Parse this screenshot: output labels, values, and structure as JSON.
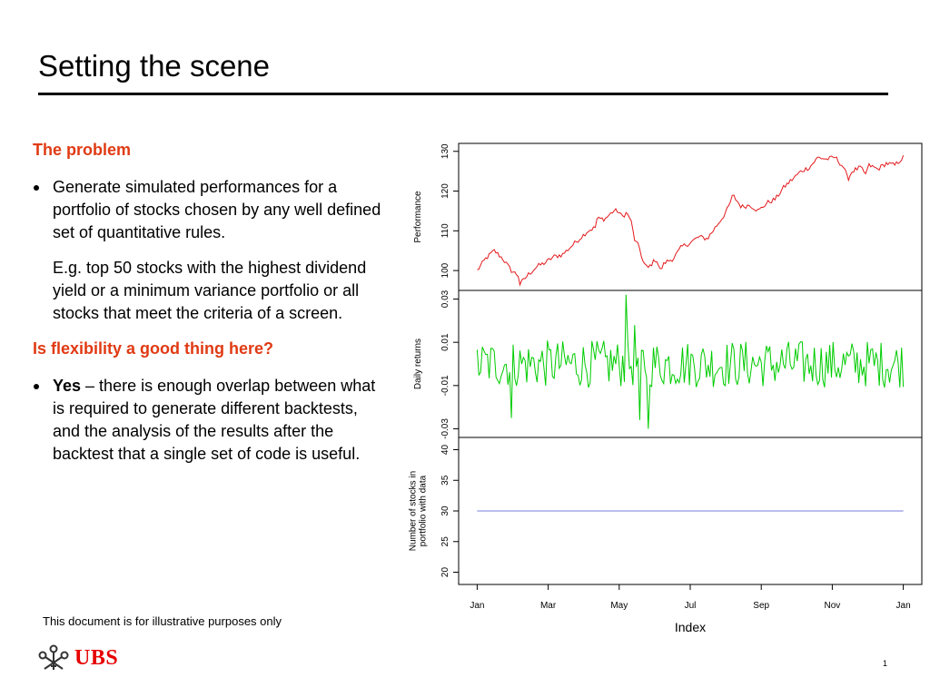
{
  "slide": {
    "title": "Setting the scene",
    "heading_problem": "The problem",
    "bullet1": "Generate simulated performances for a portfolio of stocks chosen by any well defined set of quantitative rules.",
    "example": "E.g.  top 50 stocks with the highest dividend yield or a minimum variance portfolio or all stocks that meet the criteria of a screen.",
    "heading_flex": "Is flexibility a good thing here?",
    "bullet2_bold": "Yes",
    "bullet2_rest": " – there is enough overlap between what is required to generate different backtests, and the analysis of the results after the backtest that a single set of code is useful.",
    "footnote": "This document is for illustrative purposes only",
    "logo_text": "UBS",
    "page_number": "1"
  },
  "colors": {
    "heading": "#e03a13",
    "performance_line": "#e41a1c",
    "returns_line": "#00cc00",
    "stocks_line": "#7b7bdf",
    "logo": "#e60000"
  },
  "icons": {
    "logo": "keys-icon"
  },
  "chart_data": {
    "type": "line",
    "xlabel": "Index",
    "x_ticks": [
      "Jan",
      "Mar",
      "May",
      "Jul",
      "Sep",
      "Nov",
      "Jan"
    ],
    "panels": [
      {
        "ylabel": [
          "Performance"
        ],
        "ylim": [
          95,
          132
        ],
        "y_ticks": [
          {
            "value": 100,
            "label": "100"
          },
          {
            "value": 110,
            "label": "110"
          },
          {
            "value": 120,
            "label": "120"
          },
          {
            "value": 130,
            "label": "130"
          }
        ],
        "series": [
          {
            "color": "#e41a1c",
            "anchors": [
              [
                0,
                100
              ],
              [
                0.02,
                103
              ],
              [
                0.04,
                105
              ],
              [
                0.06,
                103
              ],
              [
                0.08,
                100
              ],
              [
                0.1,
                98.5
              ],
              [
                0.1,
                96.5
              ],
              [
                0.12,
                99
              ],
              [
                0.14,
                101
              ],
              [
                0.16,
                102
              ],
              [
                0.18,
                103.5
              ],
              [
                0.2,
                104
              ],
              [
                0.22,
                106
              ],
              [
                0.24,
                108
              ],
              [
                0.26,
                110
              ],
              [
                0.28,
                111
              ],
              [
                0.3,
                113
              ],
              [
                0.28,
                113
              ],
              [
                0.32,
                115
              ],
              [
                0.33,
                115
              ],
              [
                0.34,
                113.5
              ],
              [
                0.35,
                114.5
              ],
              [
                0.36,
                113
              ],
              [
                0.37,
                107.5
              ],
              [
                0.38,
                106
              ],
              [
                0.39,
                102
              ],
              [
                0.4,
                100.5
              ],
              [
                0.42,
                103
              ],
              [
                0.43,
                100
              ],
              [
                0.44,
                102
              ],
              [
                0.46,
                103
              ],
              [
                0.48,
                106
              ],
              [
                0.5,
                107
              ],
              [
                0.52,
                108.5
              ],
              [
                0.54,
                108
              ],
              [
                0.56,
                111
              ],
              [
                0.58,
                114
              ],
              [
                0.59,
                116
              ],
              [
                0.6,
                119
              ],
              [
                0.62,
                116
              ],
              [
                0.64,
                116.5
              ],
              [
                0.66,
                115
              ],
              [
                0.68,
                117
              ],
              [
                0.7,
                118
              ],
              [
                0.72,
                121
              ],
              [
                0.74,
                123
              ],
              [
                0.76,
                125
              ],
              [
                0.78,
                126
              ],
              [
                0.8,
                128.5
              ],
              [
                0.82,
                128
              ],
              [
                0.84,
                128.5
              ],
              [
                0.86,
                126
              ],
              [
                0.87,
                123
              ],
              [
                0.88,
                125
              ],
              [
                0.9,
                126
              ],
              [
                0.91,
                124
              ],
              [
                0.92,
                126.5
              ],
              [
                0.94,
                125.5
              ],
              [
                0.96,
                127
              ],
              [
                0.98,
                126.5
              ],
              [
                1,
                128.5
              ]
            ],
            "n_points": 250,
            "noise": 0.6
          }
        ]
      },
      {
        "ylabel": [
          "Daily returns"
        ],
        "ylim": [
          -0.034,
          0.034
        ],
        "y_ticks": [
          {
            "value": -0.03,
            "label": "-0.03"
          },
          {
            "value": -0.01,
            "label": "-0.01"
          },
          {
            "value": 0.01,
            "label": "0.01"
          },
          {
            "value": 0.03,
            "label": "0.03"
          }
        ],
        "series": [
          {
            "color": "#00cc00",
            "n_points": 250,
            "baseline": 0.0,
            "amplitude": 0.011,
            "spikes": [
              [
                0.08,
                -0.025
              ],
              [
                0.35,
                0.032
              ],
              [
                0.38,
                -0.026
              ],
              [
                0.4,
                -0.03
              ],
              [
                0.37,
                0.018
              ],
              [
                0.5,
                0.02
              ]
            ]
          }
        ]
      },
      {
        "ylabel": [
          "Number of stocks in",
          "portfolio with data"
        ],
        "ylim": [
          18,
          42
        ],
        "y_ticks": [
          {
            "value": 20,
            "label": "20"
          },
          {
            "value": 25,
            "label": "25"
          },
          {
            "value": 30,
            "label": "30"
          },
          {
            "value": 35,
            "label": "35"
          },
          {
            "value": 40,
            "label": "40"
          }
        ],
        "series": [
          {
            "color": "#7b7bdf",
            "constant": 30,
            "x_range": [
              0,
              1
            ]
          }
        ]
      }
    ]
  }
}
